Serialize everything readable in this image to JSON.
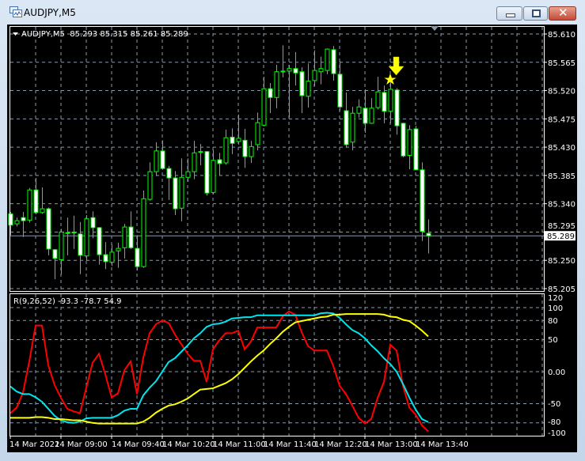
{
  "window": {
    "title": "AUDJPY,M5",
    "buttons": {
      "minimize": "minimize",
      "restore": "restore",
      "close": "close"
    }
  },
  "chart": {
    "header": "AUDJPY,M5  85.293 85.315 85.261 85.289",
    "current_price": "85.289",
    "price_axis_labels": [
      "85.610",
      "85.565",
      "85.520",
      "85.475",
      "85.430",
      "85.385",
      "85.340",
      "85.295",
      "85.250",
      "85.205"
    ],
    "time_axis_labels": [
      "14 Mar 2022",
      "14 Mar 09:00",
      "14 Mar 09:40",
      "14 Mar 10:20",
      "14 Mar 11:00",
      "14 Mar 11:40",
      "14 Mar 12:20",
      "14 Mar 13:00",
      "14 Mar 13:40"
    ],
    "colors": {
      "background": "#000000",
      "bull_outline": "#00ff00",
      "bear_body": "#ffffff",
      "grid": "#8a9aae",
      "axis_text": "#ffffff",
      "signal": "#ffff00",
      "current_price_line": "#8a9aae"
    },
    "signal_marker": {
      "arrow_icon": "arrow-down-icon",
      "star_icon": "star-icon"
    }
  },
  "chart_data": [
    {
      "type": "candlestick",
      "title": "AUDJPY,M5",
      "ylim": [
        85.205,
        85.61
      ],
      "grid": true,
      "candles": [
        [
          85.324,
          85.327,
          85.29,
          85.306
        ],
        [
          85.308,
          85.318,
          85.304,
          85.313
        ],
        [
          85.318,
          85.327,
          85.287,
          85.313
        ],
        [
          85.314,
          85.365,
          85.31,
          85.362
        ],
        [
          85.362,
          85.381,
          85.323,
          85.326
        ],
        [
          85.326,
          85.366,
          85.324,
          85.332
        ],
        [
          85.332,
          85.334,
          85.258,
          85.268
        ],
        [
          85.267,
          85.268,
          85.22,
          85.253
        ],
        [
          85.251,
          85.3,
          85.228,
          85.295
        ],
        [
          85.293,
          85.318,
          85.258,
          85.294
        ],
        [
          85.294,
          85.321,
          85.268,
          85.295
        ],
        [
          85.292,
          85.311,
          85.228,
          85.258
        ],
        [
          85.257,
          85.322,
          85.249,
          85.316
        ],
        [
          85.318,
          85.328,
          85.285,
          85.302
        ],
        [
          85.302,
          85.303,
          85.243,
          85.259
        ],
        [
          85.259,
          85.279,
          85.236,
          85.248
        ],
        [
          85.247,
          85.275,
          85.241,
          85.263
        ],
        [
          85.265,
          85.278,
          85.238,
          85.269
        ],
        [
          85.27,
          85.308,
          85.253,
          85.303
        ],
        [
          85.303,
          85.328,
          85.268,
          85.27
        ],
        [
          85.269,
          85.29,
          85.234,
          85.24
        ],
        [
          85.24,
          85.361,
          85.238,
          85.348
        ],
        [
          85.347,
          85.406,
          85.345,
          85.391
        ],
        [
          85.391,
          85.438,
          85.384,
          85.424
        ],
        [
          85.424,
          85.441,
          85.394,
          85.396
        ],
        [
          85.396,
          85.4,
          85.346,
          85.381
        ],
        [
          85.381,
          85.392,
          85.322,
          85.332
        ],
        [
          85.333,
          85.412,
          85.312,
          85.382
        ],
        [
          85.382,
          85.412,
          85.375,
          85.391
        ],
        [
          85.391,
          85.44,
          85.379,
          85.421
        ],
        [
          85.422,
          85.435,
          85.401,
          85.423
        ],
        [
          85.423,
          85.424,
          85.353,
          85.357
        ],
        [
          85.358,
          85.426,
          85.355,
          85.409
        ],
        [
          85.41,
          85.421,
          85.384,
          85.404
        ],
        [
          85.405,
          85.458,
          85.402,
          85.445
        ],
        [
          85.446,
          85.46,
          85.419,
          85.436
        ],
        [
          85.439,
          85.482,
          85.434,
          85.444
        ],
        [
          85.441,
          85.459,
          85.397,
          85.415
        ],
        [
          85.415,
          85.44,
          85.405,
          85.431
        ],
        [
          85.434,
          85.485,
          85.425,
          85.469
        ],
        [
          85.465,
          85.542,
          85.463,
          85.523
        ],
        [
          85.523,
          85.532,
          85.484,
          85.509
        ],
        [
          85.509,
          85.561,
          85.492,
          85.55
        ],
        [
          85.551,
          85.592,
          85.541,
          85.551
        ],
        [
          85.551,
          85.561,
          85.477,
          85.555
        ],
        [
          85.555,
          85.581,
          85.528,
          85.548
        ],
        [
          85.55,
          85.557,
          85.484,
          85.512
        ],
        [
          85.511,
          85.563,
          85.493,
          85.535
        ],
        [
          85.536,
          85.584,
          85.527,
          85.552
        ],
        [
          85.55,
          85.574,
          85.53,
          85.555
        ],
        [
          85.552,
          85.587,
          85.546,
          85.586
        ],
        [
          85.585,
          85.591,
          85.536,
          85.547
        ],
        [
          85.546,
          85.567,
          85.488,
          85.494
        ],
        [
          85.488,
          85.517,
          85.429,
          85.434
        ],
        [
          85.438,
          85.494,
          85.425,
          85.484
        ],
        [
          85.484,
          85.506,
          85.477,
          85.494
        ],
        [
          85.492,
          85.522,
          85.453,
          85.468
        ],
        [
          85.468,
          85.508,
          85.467,
          85.492
        ],
        [
          85.493,
          85.542,
          85.49,
          85.518
        ],
        [
          85.517,
          85.528,
          85.468,
          85.487
        ],
        [
          85.487,
          85.535,
          85.468,
          85.522
        ],
        [
          85.521,
          85.524,
          85.45,
          85.464
        ],
        [
          85.468,
          85.469,
          85.414,
          85.416
        ],
        [
          85.417,
          85.465,
          85.395,
          85.458
        ],
        [
          85.459,
          85.464,
          85.393,
          85.394
        ],
        [
          85.394,
          85.406,
          85.281,
          85.296
        ],
        [
          85.293,
          85.315,
          85.261,
          85.289
        ]
      ],
      "candle_fields": [
        "open",
        "high",
        "low",
        "close"
      ],
      "signal_bar": 61
    },
    {
      "type": "line",
      "title": "R(9,26,52) -93.3 -78.7 54.9",
      "ylim": [
        -100,
        120
      ],
      "y_ticks": [
        "120",
        "100",
        "80",
        "50",
        "0.00",
        "-50",
        "-80",
        "-100"
      ],
      "y_tick_values": [
        120,
        100,
        80,
        50,
        0,
        -50,
        -80,
        -100
      ],
      "grid_levels": [
        100,
        80,
        50,
        0,
        -50,
        -80
      ],
      "grid": true,
      "series": [
        {
          "color": "#ff0000",
          "values": [
            -65,
            -56,
            -33,
            16,
            72,
            72,
            10,
            -21,
            -41,
            -58,
            -62,
            -65,
            -25,
            14,
            28,
            -4,
            -40,
            -34,
            2,
            16,
            -35,
            22,
            60,
            74,
            80,
            76,
            58,
            43,
            28,
            17,
            17,
            -16,
            35,
            49,
            60,
            60,
            64,
            35,
            47,
            69,
            69,
            69,
            69,
            86,
            94,
            89,
            62,
            40,
            33,
            33,
            33,
            9,
            -22,
            -35,
            -53,
            -72,
            -81,
            -74,
            -41,
            -16,
            42,
            33,
            -22,
            -56,
            -67,
            -84,
            -93.3
          ]
        },
        {
          "color": "#00e5ee",
          "values": [
            -23,
            -31,
            -35,
            -35,
            -40,
            -47,
            -58,
            -69,
            -76,
            -79,
            -80,
            -78,
            -73,
            -72,
            -72,
            -72,
            -72,
            -68,
            -61,
            -58,
            -58,
            -37,
            -25,
            -15,
            0,
            15,
            21,
            31,
            41,
            52,
            60,
            70,
            74,
            75,
            78,
            83,
            84,
            85,
            85,
            88,
            88,
            88,
            88,
            88,
            88,
            88,
            88,
            88,
            88,
            91,
            92,
            91,
            84,
            74,
            65,
            60,
            52,
            41,
            32,
            21,
            12,
            0,
            -19,
            -40,
            -59,
            -74,
            -78.7
          ]
        },
        {
          "color": "#ffff00",
          "values": [
            -72,
            -72,
            -72,
            -72,
            -71,
            -71,
            -72,
            -74,
            -74,
            -75,
            -76,
            -76,
            -78,
            -80,
            -81,
            -81,
            -81,
            -81,
            -81,
            -81,
            -81,
            -78,
            -72,
            -64,
            -58,
            -53,
            -51,
            -47,
            -42,
            -35,
            -28,
            -27,
            -26,
            -22,
            -18,
            -12,
            -4,
            6,
            16,
            25,
            33,
            43,
            52,
            62,
            70,
            77,
            79,
            81,
            83,
            85,
            86,
            89,
            89,
            90,
            90,
            90,
            90,
            90,
            90,
            89,
            86,
            85,
            81,
            79,
            72,
            64,
            54.9
          ]
        }
      ]
    }
  ]
}
